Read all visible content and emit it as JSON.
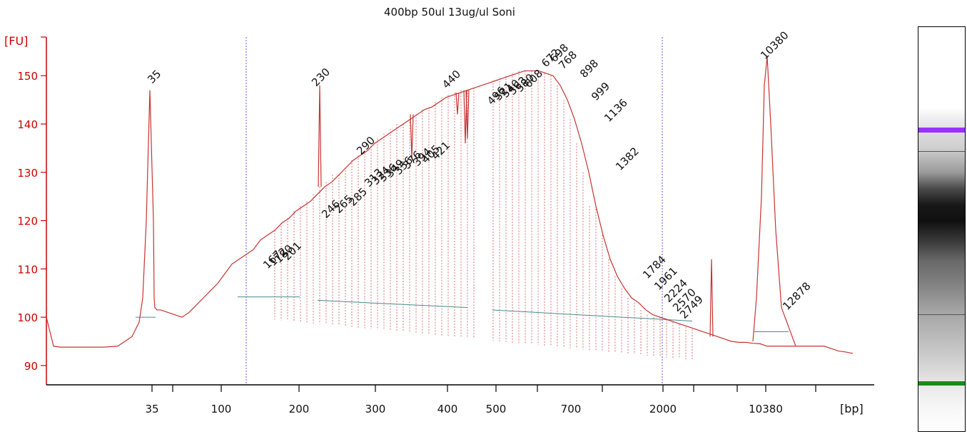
{
  "chart_data": {
    "type": "line",
    "title": "400bp 50ul 13ug/ul Soni",
    "ylabel": "[FU]",
    "xlabel": "[bp]",
    "ylim": [
      86,
      158
    ],
    "y_ticks": [
      90,
      100,
      110,
      120,
      130,
      140,
      150
    ],
    "x_tick_labels": [
      "35",
      "100",
      "200",
      "300",
      "400",
      "500",
      "700",
      "2000",
      "10380"
    ],
    "lower_marker": {
      "label": "35",
      "color": "#2e8b2e"
    },
    "upper_marker": {
      "label": "10380",
      "color": "#9b30ff"
    },
    "peak_labels": [
      "35",
      "167",
      "172",
      "180",
      "201",
      "230",
      "246",
      "265",
      "285",
      "290",
      "313",
      "324",
      "336",
      "349",
      "356",
      "376",
      "394",
      "405",
      "421",
      "440",
      "496",
      "521",
      "540",
      "563",
      "580",
      "608",
      "672",
      "698",
      "768",
      "898",
      "999",
      "1136",
      "1382",
      "1784",
      "1961",
      "2224",
      "2570",
      "2749",
      "10380",
      "12878"
    ],
    "series": [
      {
        "x": [
          0,
          10,
          20,
          40,
          60,
          80,
          100,
          110,
          120,
          130,
          135,
          140,
          145,
          150,
          151,
          152,
          155,
          160,
          170,
          180,
          190,
          200,
          210,
          220,
          230,
          240,
          250,
          260,
          270,
          280,
          290,
          300,
          310,
          320,
          330,
          340,
          350,
          360,
          370,
          380,
          390,
          400,
          410,
          420,
          430,
          440,
          450,
          460,
          470,
          480,
          490,
          500,
          510,
          520,
          530,
          540,
          550,
          560,
          570,
          580,
          590,
          600,
          610,
          620,
          630,
          640,
          650,
          660,
          670,
          680,
          690,
          700,
          710,
          720,
          730,
          740,
          750,
          760,
          770,
          780,
          790,
          800,
          810,
          820,
          830,
          840,
          850,
          860,
          870,
          880,
          890,
          900,
          910,
          920,
          930,
          940,
          950,
          960,
          970,
          980,
          990,
          1000,
          1010,
          1020,
          1030,
          1040,
          1050,
          1060,
          1070,
          1080,
          1090,
          1100,
          1110,
          1120,
          1130
        ],
        "y": [
          100,
          94,
          93.8,
          93.8,
          93.8,
          93.8,
          94,
          95,
          96,
          99,
          104,
          120,
          147,
          120,
          104,
          102,
          101.5,
          101.5,
          101,
          100.5,
          100,
          101,
          102.5,
          104,
          105.5,
          107,
          109,
          111,
          112,
          113,
          114,
          116,
          117,
          118,
          119.5,
          120.5,
          122,
          123,
          124,
          125.5,
          127,
          128,
          129.5,
          131,
          132.5,
          133.5,
          134.5,
          136,
          137,
          138,
          139,
          140,
          141,
          142,
          143,
          143.5,
          144.5,
          145.5,
          146,
          146.5,
          147,
          147.5,
          148,
          148.5,
          149,
          149.5,
          150,
          150.5,
          151,
          151,
          151,
          150.5,
          150,
          148,
          145,
          141,
          136,
          130,
          123,
          117,
          112,
          108.5,
          106,
          104,
          103,
          101.5,
          100.5,
          100,
          99.5,
          99,
          98.5,
          98,
          97.5,
          97,
          96.5,
          96,
          95.5,
          95,
          94.8,
          94.8,
          94.6,
          94.5,
          94,
          94,
          94,
          94,
          94,
          94,
          94,
          94,
          94,
          93.5,
          93,
          92.8,
          92.5
        ]
      }
    ]
  }
}
